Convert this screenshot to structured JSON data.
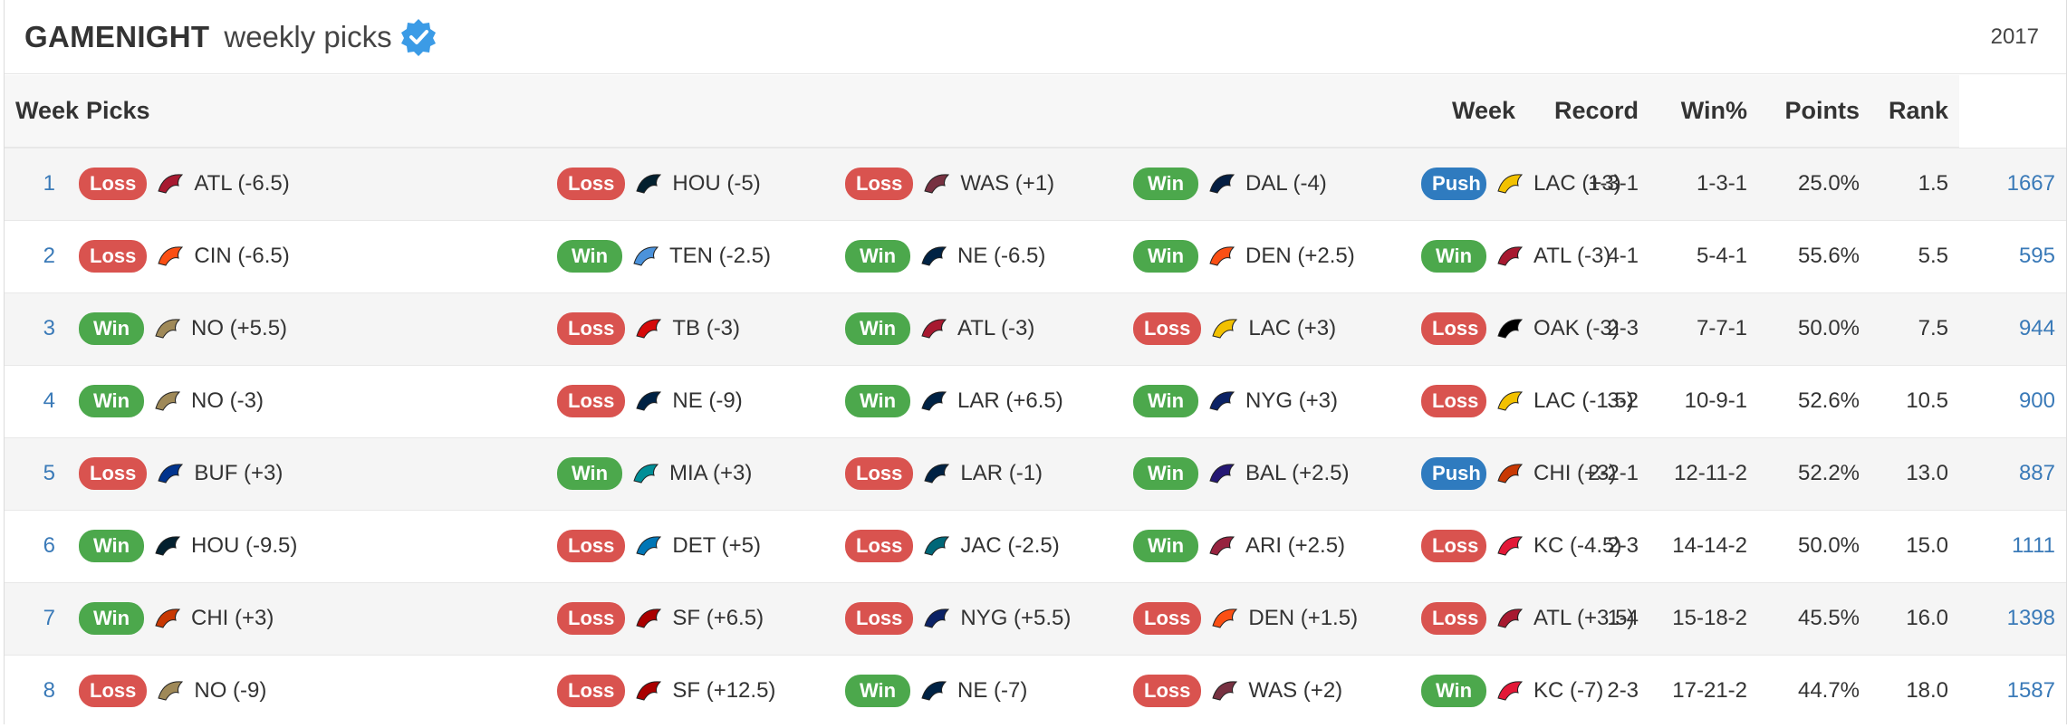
{
  "header": {
    "brand": "GAMENIGHT",
    "subtitle": "weekly picks",
    "season": "2017"
  },
  "colors": {
    "Loss": "#d9534f",
    "Win": "#4ca84c",
    "Push": "#2f7bbf"
  },
  "columns": {
    "week": "Week",
    "picks": "Picks",
    "week_record": "Week",
    "record": "Record",
    "win_pct": "Win%",
    "points": "Points",
    "rank": "Rank"
  },
  "rows": [
    {
      "week": "1",
      "picks": [
        {
          "result": "Loss",
          "team": "ATL",
          "line": "ATL (-6.5)"
        },
        {
          "result": "Loss",
          "team": "HOU",
          "line": "HOU (-5)"
        },
        {
          "result": "Loss",
          "team": "WAS",
          "line": "WAS (+1)"
        },
        {
          "result": "Win",
          "team": "DAL",
          "line": "DAL (-4)"
        },
        {
          "result": "Push",
          "team": "LAC",
          "line": "LAC (+3)"
        }
      ],
      "week_record": "1-3-1",
      "record": "1-3-1",
      "win_pct": "25.0%",
      "points": "1.5",
      "rank": "1667"
    },
    {
      "week": "2",
      "picks": [
        {
          "result": "Loss",
          "team": "CIN",
          "line": "CIN (-6.5)"
        },
        {
          "result": "Win",
          "team": "TEN",
          "line": "TEN (-2.5)"
        },
        {
          "result": "Win",
          "team": "NE",
          "line": "NE (-6.5)"
        },
        {
          "result": "Win",
          "team": "DEN",
          "line": "DEN (+2.5)"
        },
        {
          "result": "Win",
          "team": "ATL",
          "line": "ATL (-3)"
        }
      ],
      "week_record": "4-1",
      "record": "5-4-1",
      "win_pct": "55.6%",
      "points": "5.5",
      "rank": "595"
    },
    {
      "week": "3",
      "picks": [
        {
          "result": "Win",
          "team": "NO",
          "line": "NO (+5.5)"
        },
        {
          "result": "Loss",
          "team": "TB",
          "line": "TB (-3)"
        },
        {
          "result": "Win",
          "team": "ATL",
          "line": "ATL (-3)"
        },
        {
          "result": "Loss",
          "team": "LAC",
          "line": "LAC (+3)"
        },
        {
          "result": "Loss",
          "team": "OAK",
          "line": "OAK (-3)"
        }
      ],
      "week_record": "2-3",
      "record": "7-7-1",
      "win_pct": "50.0%",
      "points": "7.5",
      "rank": "944"
    },
    {
      "week": "4",
      "picks": [
        {
          "result": "Win",
          "team": "NO",
          "line": "NO (-3)"
        },
        {
          "result": "Loss",
          "team": "NE",
          "line": "NE (-9)"
        },
        {
          "result": "Win",
          "team": "LAR",
          "line": "LAR (+6.5)"
        },
        {
          "result": "Win",
          "team": "NYG",
          "line": "NYG (+3)"
        },
        {
          "result": "Loss",
          "team": "LAC",
          "line": "LAC (-1.5)"
        }
      ],
      "week_record": "3-2",
      "record": "10-9-1",
      "win_pct": "52.6%",
      "points": "10.5",
      "rank": "900"
    },
    {
      "week": "5",
      "picks": [
        {
          "result": "Loss",
          "team": "BUF",
          "line": "BUF (+3)"
        },
        {
          "result": "Win",
          "team": "MIA",
          "line": "MIA (+3)"
        },
        {
          "result": "Loss",
          "team": "LAR",
          "line": "LAR (-1)"
        },
        {
          "result": "Win",
          "team": "BAL",
          "line": "BAL (+2.5)"
        },
        {
          "result": "Push",
          "team": "CHI",
          "line": "CHI (+3)"
        }
      ],
      "week_record": "2-2-1",
      "record": "12-11-2",
      "win_pct": "52.2%",
      "points": "13.0",
      "rank": "887"
    },
    {
      "week": "6",
      "picks": [
        {
          "result": "Win",
          "team": "HOU",
          "line": "HOU (-9.5)"
        },
        {
          "result": "Loss",
          "team": "DET",
          "line": "DET (+5)"
        },
        {
          "result": "Loss",
          "team": "JAC",
          "line": "JAC (-2.5)"
        },
        {
          "result": "Win",
          "team": "ARI",
          "line": "ARI (+2.5)"
        },
        {
          "result": "Loss",
          "team": "KC",
          "line": "KC (-4.5)"
        }
      ],
      "week_record": "2-3",
      "record": "14-14-2",
      "win_pct": "50.0%",
      "points": "15.0",
      "rank": "1111"
    },
    {
      "week": "7",
      "picks": [
        {
          "result": "Win",
          "team": "CHI",
          "line": "CHI (+3)"
        },
        {
          "result": "Loss",
          "team": "SF",
          "line": "SF (+6.5)"
        },
        {
          "result": "Loss",
          "team": "NYG",
          "line": "NYG (+5.5)"
        },
        {
          "result": "Loss",
          "team": "DEN",
          "line": "DEN (+1.5)"
        },
        {
          "result": "Loss",
          "team": "ATL",
          "line": "ATL (+3.5)"
        }
      ],
      "week_record": "1-4",
      "record": "15-18-2",
      "win_pct": "45.5%",
      "points": "16.0",
      "rank": "1398"
    },
    {
      "week": "8",
      "picks": [
        {
          "result": "Loss",
          "team": "NO",
          "line": "NO (-9)"
        },
        {
          "result": "Loss",
          "team": "SF",
          "line": "SF (+12.5)"
        },
        {
          "result": "Win",
          "team": "NE",
          "line": "NE (-7)"
        },
        {
          "result": "Loss",
          "team": "WAS",
          "line": "WAS (+2)"
        },
        {
          "result": "Win",
          "team": "KC",
          "line": "KC (-7)"
        }
      ],
      "week_record": "2-3",
      "record": "17-21-2",
      "win_pct": "44.7%",
      "points": "18.0",
      "rank": "1587"
    }
  ]
}
